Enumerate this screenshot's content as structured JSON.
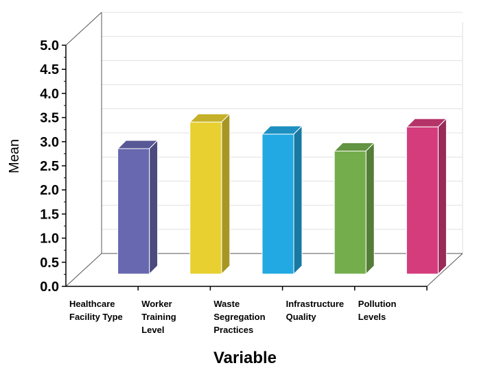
{
  "chart_data": {
    "type": "bar",
    "title": "",
    "xlabel": "Variable",
    "ylabel": "Mean",
    "ylim": [
      0,
      5
    ],
    "yticks": [
      "0.0",
      "0.5",
      "1.0",
      "1.5",
      "2.0",
      "2.5",
      "3.0",
      "3.5",
      "4.0",
      "4.5",
      "5.0"
    ],
    "grid": true,
    "style": "3d",
    "categories": [
      [
        "Healthcare",
        "Facility Type"
      ],
      [
        "Worker",
        "Training",
        "Level"
      ],
      [
        "Waste",
        "Segregation",
        "Practices"
      ],
      [
        "Infrastructure",
        "Quality"
      ],
      [
        "Pollution",
        "Levels"
      ]
    ],
    "values": [
      2.6,
      3.15,
      2.9,
      2.55,
      3.05
    ],
    "colors": [
      "#6868b0",
      "#e8d030",
      "#22a8e2",
      "#74ae4c",
      "#d43c7c"
    ]
  }
}
